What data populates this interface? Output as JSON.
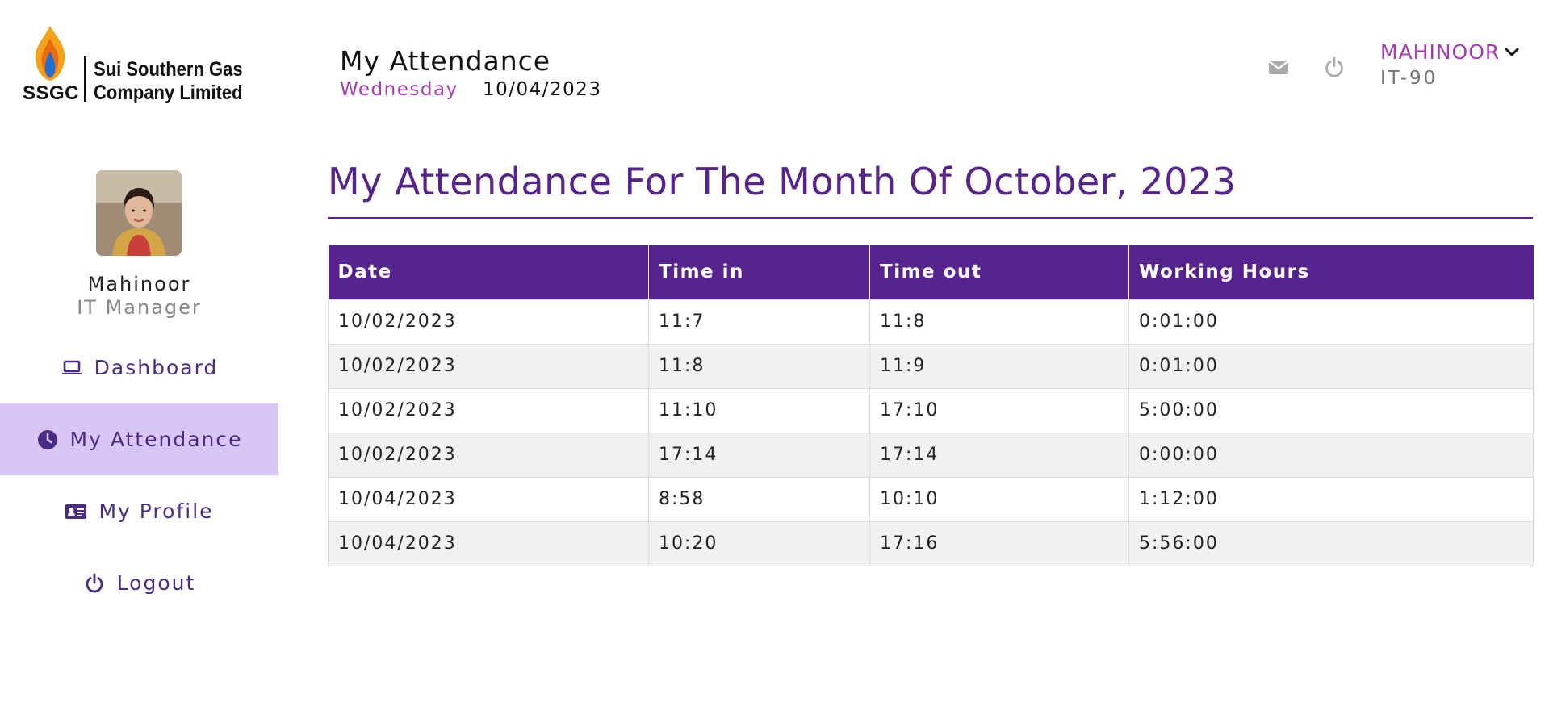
{
  "logo": {
    "abbr": "SSGC",
    "name_line1": "Sui Southern Gas",
    "name_line2": "Company Limited"
  },
  "header": {
    "page_title": "My Attendance",
    "day": "Wednesday",
    "date": "10/04/2023",
    "icons": [
      "envelope-icon",
      "power-icon",
      "chevron-down-icon"
    ]
  },
  "user": {
    "name": "MAHINOOR",
    "id": "IT-90"
  },
  "profile": {
    "name": "Mahinoor",
    "role": "IT Manager"
  },
  "nav": {
    "items": [
      {
        "label": "Dashboard",
        "icon": "laptop-icon",
        "active": false
      },
      {
        "label": "My Attendance",
        "icon": "clock-icon",
        "active": true
      },
      {
        "label": "My Profile",
        "icon": "id-card-icon",
        "active": false
      },
      {
        "label": "Logout",
        "icon": "power-icon",
        "active": false
      }
    ]
  },
  "main": {
    "title": "My Attendance For The Month Of October, 2023",
    "table": {
      "headers": [
        "Date",
        "Time in",
        "Time out",
        "Working Hours"
      ],
      "rows": [
        [
          "10/02/2023",
          "11:7",
          "11:8",
          "0:01:00"
        ],
        [
          "10/02/2023",
          "11:8",
          "11:9",
          "0:01:00"
        ],
        [
          "10/02/2023",
          "11:10",
          "17:10",
          "5:00:00"
        ],
        [
          "10/02/2023",
          "17:14",
          "17:14",
          "0:00:00"
        ],
        [
          "10/04/2023",
          "8:58",
          "10:10",
          "1:12:00"
        ],
        [
          "10/04/2023",
          "10:20",
          "17:16",
          "5:56:00"
        ]
      ]
    }
  },
  "colors": {
    "brand_purple": "#56238f",
    "accent_magenta": "#a83bb3",
    "nav_active_bg": "#d9c6f4",
    "row_stripe": "#f1f1f1"
  }
}
